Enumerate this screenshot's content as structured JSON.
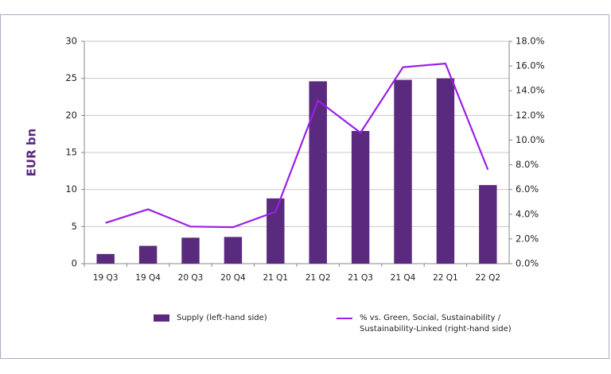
{
  "chart_data": {
    "type": "bar",
    "categories": [
      "19 Q3",
      "19 Q4",
      "20 Q3",
      "20 Q4",
      "21 Q1",
      "21 Q2",
      "21 Q3",
      "21 Q4",
      "22 Q1",
      "22 Q2"
    ],
    "series": [
      {
        "name": "Supply (left-hand side)",
        "color": "#5a2a7e",
        "values": [
          1.3,
          2.4,
          3.5,
          3.6,
          8.8,
          24.6,
          17.9,
          24.8,
          25.0,
          10.6
        ]
      },
      {
        "name": "% vs. Green, Social, Sustainability / Sustainability-Linked (right-hand side)",
        "color": "#9b1fe8",
        "type": "line",
        "axis": "y2",
        "values": [
          3.3,
          4.4,
          3.0,
          2.95,
          4.2,
          13.2,
          10.6,
          15.9,
          16.2,
          7.6
        ]
      }
    ],
    "y_label": "EUR bn",
    "ylim": [
      0,
      30
    ],
    "yticks": [
      0,
      5,
      10,
      15,
      20,
      25,
      30
    ],
    "y2lim": [
      0,
      18
    ],
    "y2ticks": [
      {
        "value": 0,
        "label": "0.0%"
      },
      {
        "value": 2,
        "label": "2.0%"
      },
      {
        "value": 4,
        "label": "4.0%"
      },
      {
        "value": 6,
        "label": "6.0%"
      },
      {
        "value": 8,
        "label": "8.0%"
      },
      {
        "value": 10,
        "label": "10.0%"
      },
      {
        "value": 12,
        "label": "12.0%"
      },
      {
        "value": 14,
        "label": "14.0%"
      },
      {
        "value": 16,
        "label": "16.0%"
      },
      {
        "value": 18,
        "label": "18.0%"
      }
    ],
    "grid": true,
    "legend": "bottom"
  }
}
